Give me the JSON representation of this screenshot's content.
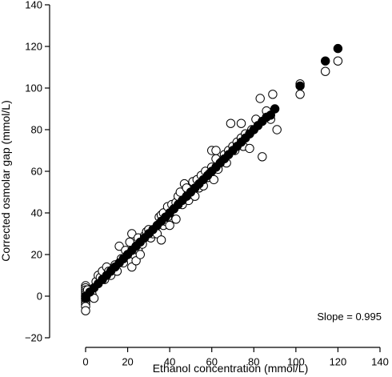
{
  "chart_data": {
    "type": "scatter",
    "xlabel": "Ethanol concentration (mmol/L)",
    "ylabel": "Corrected osmolar gap (mmol/L)",
    "xlim": [
      0,
      140
    ],
    "ylim": [
      -20,
      140
    ],
    "xticks": [
      0,
      20,
      40,
      60,
      80,
      100,
      120,
      140
    ],
    "yticks": [
      -20,
      0,
      20,
      40,
      60,
      80,
      100,
      120,
      140
    ],
    "annotation": "Slope = 0.995",
    "grid": false,
    "series": [
      {
        "marker": "open-circle",
        "points": [
          [
            0,
            5
          ],
          [
            0,
            4
          ],
          [
            0,
            3
          ],
          [
            0,
            2
          ],
          [
            0,
            1
          ],
          [
            0,
            -1
          ],
          [
            0,
            -2
          ],
          [
            0,
            -3
          ],
          [
            0,
            -4
          ],
          [
            0,
            -5
          ],
          [
            0,
            -7
          ],
          [
            0,
            0
          ],
          [
            1,
            3
          ],
          [
            3,
            1
          ],
          [
            4,
            -1
          ],
          [
            5,
            7
          ],
          [
            6,
            10
          ],
          [
            7,
            9
          ],
          [
            8,
            12
          ],
          [
            9,
            8
          ],
          [
            10,
            14
          ],
          [
            11,
            12
          ],
          [
            12,
            10
          ],
          [
            13,
            13
          ],
          [
            14,
            15
          ],
          [
            15,
            12
          ],
          [
            16,
            24
          ],
          [
            17,
            18
          ],
          [
            18,
            16
          ],
          [
            19,
            22
          ],
          [
            20,
            20
          ],
          [
            21,
            26
          ],
          [
            22,
            30
          ],
          [
            22,
            14
          ],
          [
            23,
            20
          ],
          [
            24,
            24
          ],
          [
            24,
            17
          ],
          [
            25,
            28
          ],
          [
            25,
            22
          ],
          [
            26,
            20
          ],
          [
            27,
            25
          ],
          [
            28,
            29
          ],
          [
            29,
            31
          ],
          [
            30,
            32
          ],
          [
            31,
            28
          ],
          [
            32,
            30
          ],
          [
            33,
            32
          ],
          [
            34,
            30
          ],
          [
            35,
            38
          ],
          [
            36,
            39
          ],
          [
            36,
            27
          ],
          [
            37,
            40
          ],
          [
            37,
            34
          ],
          [
            38,
            36
          ],
          [
            39,
            43
          ],
          [
            39,
            38
          ],
          [
            40,
            40
          ],
          [
            40,
            34
          ],
          [
            41,
            44
          ],
          [
            42,
            42
          ],
          [
            43,
            37
          ],
          [
            43,
            45
          ],
          [
            44,
            48
          ],
          [
            45,
            50
          ],
          [
            46,
            44
          ],
          [
            47,
            54
          ],
          [
            48,
            52
          ],
          [
            49,
            46
          ],
          [
            50,
            49
          ],
          [
            51,
            55
          ],
          [
            52,
            48
          ],
          [
            53,
            56
          ],
          [
            54,
            52
          ],
          [
            55,
            58
          ],
          [
            56,
            53
          ],
          [
            57,
            60
          ],
          [
            58,
            57
          ],
          [
            59,
            59
          ],
          [
            60,
            62
          ],
          [
            60,
            70
          ],
          [
            61,
            56
          ],
          [
            62,
            70
          ],
          [
            62,
            66
          ],
          [
            63,
            61
          ],
          [
            65,
            65
          ],
          [
            66,
            68
          ],
          [
            67,
            64
          ],
          [
            68,
            70
          ],
          [
            69,
            83
          ],
          [
            70,
            72
          ],
          [
            71,
            70
          ],
          [
            72,
            74
          ],
          [
            74,
            76
          ],
          [
            74,
            83
          ],
          [
            75,
            72
          ],
          [
            76,
            78
          ],
          [
            78,
            71
          ],
          [
            79,
            80
          ],
          [
            81,
            85
          ],
          [
            83,
            95
          ],
          [
            84,
            67
          ],
          [
            86,
            89
          ],
          [
            88,
            85
          ],
          [
            89,
            97
          ],
          [
            91,
            80
          ],
          [
            102,
            102
          ],
          [
            102,
            97
          ],
          [
            114,
            108
          ],
          [
            120,
            113
          ]
        ]
      },
      {
        "marker": "filled-circle",
        "points": [
          [
            0,
            0
          ],
          [
            0,
            -1
          ],
          [
            2,
            2
          ],
          [
            4,
            4
          ],
          [
            6,
            6
          ],
          [
            8,
            8
          ],
          [
            10,
            10
          ],
          [
            12,
            12
          ],
          [
            14,
            14
          ],
          [
            16,
            16
          ],
          [
            18,
            18
          ],
          [
            20,
            20
          ],
          [
            22,
            22
          ],
          [
            24,
            24
          ],
          [
            26,
            26
          ],
          [
            28,
            28
          ],
          [
            30,
            30
          ],
          [
            32,
            32
          ],
          [
            34,
            34
          ],
          [
            36,
            36
          ],
          [
            38,
            38
          ],
          [
            40,
            40
          ],
          [
            42,
            42
          ],
          [
            44,
            44
          ],
          [
            46,
            46
          ],
          [
            48,
            48
          ],
          [
            50,
            50
          ],
          [
            52,
            52
          ],
          [
            54,
            54
          ],
          [
            56,
            56
          ],
          [
            58,
            58
          ],
          [
            60,
            60
          ],
          [
            62,
            62
          ],
          [
            64,
            64
          ],
          [
            66,
            66
          ],
          [
            68,
            68
          ],
          [
            70,
            70
          ],
          [
            72,
            72
          ],
          [
            74,
            74
          ],
          [
            76,
            76
          ],
          [
            78,
            78
          ],
          [
            80,
            80
          ],
          [
            82,
            82
          ],
          [
            84,
            84
          ],
          [
            86,
            86
          ],
          [
            88,
            87
          ],
          [
            90,
            90
          ],
          [
            102,
            101
          ],
          [
            114,
            113
          ],
          [
            120,
            119
          ]
        ]
      }
    ]
  }
}
